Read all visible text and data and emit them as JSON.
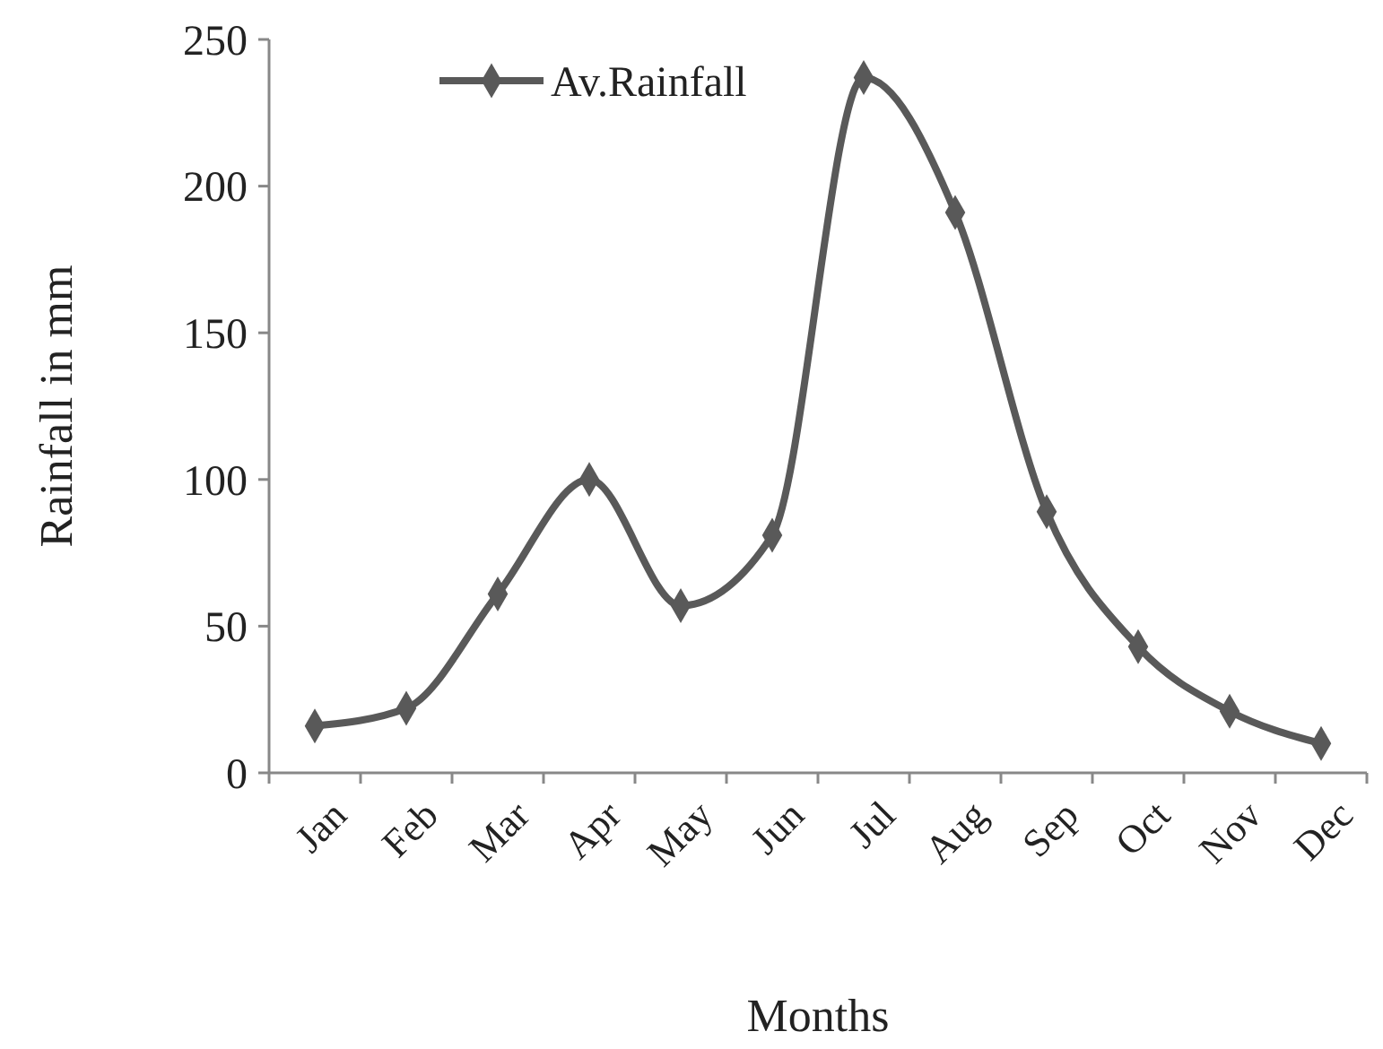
{
  "chart_data": {
    "type": "line",
    "xlabel": "Months",
    "ylabel": "Rainfall in mm",
    "categories": [
      "Jan",
      "Feb",
      "Mar",
      "Apr",
      "May",
      "Jun",
      "Jul",
      "Aug",
      "Sep",
      "Oct",
      "Nov",
      "Dec"
    ],
    "series": [
      {
        "name": "Av.Rainfall",
        "color": "#595959",
        "values": [
          16,
          22,
          61,
          100,
          57,
          81,
          237,
          191,
          89,
          43,
          21,
          10
        ]
      }
    ],
    "ylim": [
      0,
      250
    ],
    "yticks": [
      0,
      50,
      100,
      150,
      200,
      250
    ],
    "grid": false,
    "legend": "top left",
    "marker": "diamond",
    "line_style": "solid"
  }
}
